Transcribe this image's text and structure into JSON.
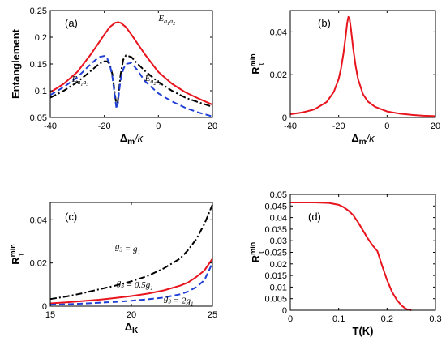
{
  "colors": {
    "red": "#e8141e",
    "blue": "#1f3fd6",
    "black": "#000000"
  },
  "chart_data": [
    {
      "id": "a",
      "panel_label": "(a)",
      "type": "line",
      "xlabel": "Δm/κ",
      "ylabel": "Entanglement",
      "xlim": [
        -40,
        20
      ],
      "ylim": [
        0.05,
        0.25
      ],
      "xticks": [
        -40,
        -20,
        0,
        20
      ],
      "yticks": [
        0.05,
        0.1,
        0.15,
        0.2,
        0.25
      ],
      "ytick_labels": [
        "0.05",
        "0.1",
        "0.15",
        "0.2",
        "0.25"
      ],
      "annotations": [
        {
          "text": "E_{a1a2}",
          "series": "E_a1a2",
          "x": 0,
          "y": 0.23
        },
        {
          "text": "E_{a1a3}",
          "series": "E_a1a3",
          "x": -32,
          "y": 0.117
        },
        {
          "text": "E_{a2a3}",
          "series": "E_a2a3",
          "x": -5,
          "y": 0.118
        }
      ],
      "series": [
        {
          "key": "E_a1a2",
          "color": "red",
          "dash": "solid",
          "x": [
            -40,
            -35,
            -30,
            -25,
            -22,
            -20,
            -18,
            -16,
            -15,
            -14,
            -12,
            -10,
            -8,
            -5,
            0,
            5,
            10,
            15,
            20
          ],
          "values": [
            0.097,
            0.113,
            0.135,
            0.168,
            0.19,
            0.205,
            0.219,
            0.227,
            0.228,
            0.227,
            0.219,
            0.205,
            0.19,
            0.168,
            0.135,
            0.113,
            0.097,
            0.085,
            0.074
          ]
        },
        {
          "key": "E_a1a3",
          "color": "black",
          "dash": "dashdot",
          "x": [
            -40,
            -35,
            -30,
            -25,
            -22,
            -20,
            -19,
            -18,
            -17,
            -16,
            -15.5,
            -15,
            -14.5,
            -14,
            -13,
            -12,
            -10,
            -8,
            -5,
            0,
            5,
            10,
            15,
            20
          ],
          "values": [
            0.087,
            0.1,
            0.116,
            0.137,
            0.15,
            0.155,
            0.155,
            0.15,
            0.13,
            0.09,
            0.072,
            0.08,
            0.105,
            0.13,
            0.158,
            0.166,
            0.163,
            0.152,
            0.137,
            0.116,
            0.1,
            0.087,
            0.078,
            0.07
          ]
        },
        {
          "key": "E_a2a3",
          "color": "blue",
          "dash": "dashed",
          "x": [
            -40,
            -35,
            -30,
            -25,
            -22,
            -20,
            -19,
            -18,
            -17,
            -16,
            -15.5,
            -15,
            -14.5,
            -14,
            -13,
            -12,
            -10,
            -8,
            -5,
            0,
            5,
            10,
            15,
            20
          ],
          "values": [
            0.092,
            0.107,
            0.125,
            0.15,
            0.163,
            0.165,
            0.161,
            0.15,
            0.125,
            0.085,
            0.066,
            0.075,
            0.1,
            0.12,
            0.14,
            0.15,
            0.152,
            0.14,
            0.118,
            0.095,
            0.08,
            0.068,
            0.059,
            0.052
          ]
        }
      ]
    },
    {
      "id": "b",
      "panel_label": "(b)",
      "type": "line",
      "xlabel": "Δm/κ",
      "ylabel": "Rτmin",
      "xlim": [
        -40,
        20
      ],
      "ylim": [
        0,
        0.05
      ],
      "xticks": [
        -40,
        -20,
        0,
        20
      ],
      "yticks": [
        0,
        0.02,
        0.04
      ],
      "ytick_labels": [
        "0",
        "0.02",
        "0.04"
      ],
      "annotations": [],
      "series": [
        {
          "key": "R",
          "color": "red",
          "dash": "solid",
          "x": [
            -40,
            -35,
            -30,
            -25,
            -22,
            -20,
            -19,
            -18,
            -17,
            -16.5,
            -16,
            -15.5,
            -15,
            -14,
            -13,
            -12,
            -10,
            -8,
            -5,
            0,
            5,
            10,
            15,
            20
          ],
          "values": [
            0.0015,
            0.0023,
            0.0038,
            0.0072,
            0.012,
            0.018,
            0.023,
            0.03,
            0.039,
            0.044,
            0.047,
            0.046,
            0.042,
            0.032,
            0.024,
            0.018,
            0.011,
            0.0075,
            0.005,
            0.0028,
            0.0018,
            0.0012,
            0.0008,
            0.0006
          ]
        }
      ]
    },
    {
      "id": "c",
      "panel_label": "(c)",
      "type": "line",
      "xlabel": "ΔK",
      "ylabel": "Rτmin",
      "xlim": [
        15,
        25
      ],
      "ylim": [
        0,
        0.048
      ],
      "xticks": [
        15,
        20,
        25
      ],
      "yticks": [
        0,
        0.02,
        0.04
      ],
      "ytick_labels": [
        "0",
        "0.02",
        "0.04"
      ],
      "annotations": [
        {
          "text": "g3 = g1",
          "series": "g3=g1",
          "x": 19.0,
          "y": 0.0265
        },
        {
          "text": "g3 = 0.5g1",
          "series": "g3=0.5g1",
          "x": 19.1,
          "y": 0.0098
        },
        {
          "text": "g3 = 2g1",
          "series": "g3=2g1",
          "x": 22.0,
          "y": 0.0025
        }
      ],
      "series": [
        {
          "key": "g3=g1",
          "color": "black",
          "dash": "dashdot",
          "x": [
            15,
            16,
            17,
            18,
            19,
            20,
            21,
            22,
            23,
            23.5,
            24,
            24.5,
            25
          ],
          "values": [
            0.0033,
            0.0045,
            0.006,
            0.0078,
            0.0095,
            0.0115,
            0.014,
            0.0175,
            0.022,
            0.026,
            0.031,
            0.038,
            0.047
          ]
        },
        {
          "key": "g3=0.5g1",
          "color": "red",
          "dash": "solid",
          "x": [
            15,
            16,
            17,
            18,
            19,
            20,
            21,
            22,
            23,
            23.5,
            24,
            24.5,
            25
          ],
          "values": [
            0.0013,
            0.0018,
            0.0024,
            0.003,
            0.0038,
            0.0047,
            0.0058,
            0.0073,
            0.0095,
            0.011,
            0.0135,
            0.0165,
            0.022
          ]
        },
        {
          "key": "g3=2g1",
          "color": "blue",
          "dash": "dashed",
          "x": [
            15,
            16,
            17,
            18,
            19,
            20,
            21,
            22,
            23,
            23.5,
            24,
            24.5,
            25
          ],
          "values": [
            0.0007,
            0.0009,
            0.0012,
            0.0016,
            0.002,
            0.0025,
            0.0032,
            0.004,
            0.0055,
            0.0068,
            0.0088,
            0.012,
            0.02
          ]
        }
      ]
    },
    {
      "id": "d",
      "panel_label": "(d)",
      "type": "line",
      "xlabel": "T(K)",
      "ylabel": "Rτmin",
      "xlim": [
        0,
        0.3
      ],
      "ylim": [
        0,
        0.05
      ],
      "xticks": [
        0,
        0.1,
        0.2,
        0.3
      ],
      "xtick_labels": [
        "0",
        "0.1",
        "0.2",
        "0.3"
      ],
      "yticks": [
        0,
        0.005,
        0.01,
        0.015,
        0.02,
        0.025,
        0.03,
        0.035,
        0.04,
        0.045,
        0.05
      ],
      "ytick_labels": [
        "0",
        "0.005",
        "0.01",
        "0.015",
        "0.02",
        "0.025",
        "0.03",
        "0.035",
        "0.04",
        "0.045",
        "0.05"
      ],
      "annotations": [],
      "series": [
        {
          "key": "R_T",
          "color": "red",
          "dash": "solid",
          "x": [
            0,
            0.05,
            0.08,
            0.1,
            0.11,
            0.12,
            0.13,
            0.14,
            0.15,
            0.16,
            0.17,
            0.18,
            0.19,
            0.2,
            0.21,
            0.22,
            0.23,
            0.24,
            0.25
          ],
          "values": [
            0.0465,
            0.0465,
            0.0463,
            0.0455,
            0.0445,
            0.043,
            0.041,
            0.038,
            0.0345,
            0.031,
            0.028,
            0.0255,
            0.019,
            0.013,
            0.008,
            0.0045,
            0.002,
            0.0005,
            0.0
          ]
        }
      ]
    }
  ]
}
